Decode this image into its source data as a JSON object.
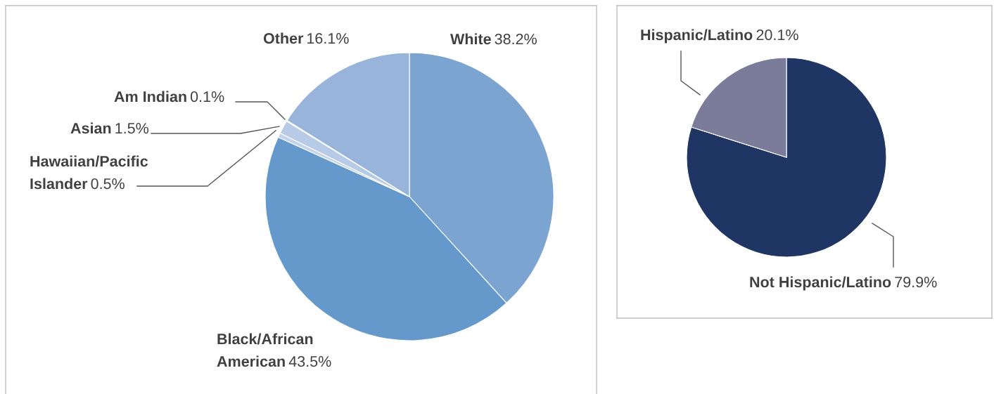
{
  "chart_data": [
    {
      "type": "pie",
      "categories": [
        "White",
        "Black/African American",
        "Hawaiian/Pacific Islander",
        "Asian",
        "Am Indian",
        "Other"
      ],
      "values": [
        38.2,
        43.5,
        0.5,
        1.5,
        0.1,
        16.1
      ],
      "colors": [
        "#7ba4d1",
        "#6699cb",
        "#c3d3ea",
        "#b7cbe7",
        "#d7e2f2",
        "#98b4db"
      ],
      "value_labels": [
        "38.2%",
        "43.5%",
        "0.5%",
        "1.5%",
        "0.1%",
        "16.1%"
      ]
    },
    {
      "type": "pie",
      "categories": [
        "Not Hispanic/Latino",
        "Hispanic/Latino"
      ],
      "values": [
        79.9,
        20.1
      ],
      "colors": [
        "#1f3563",
        "#7b7b9a"
      ],
      "value_labels": [
        "79.9%",
        "20.1%"
      ]
    }
  ]
}
